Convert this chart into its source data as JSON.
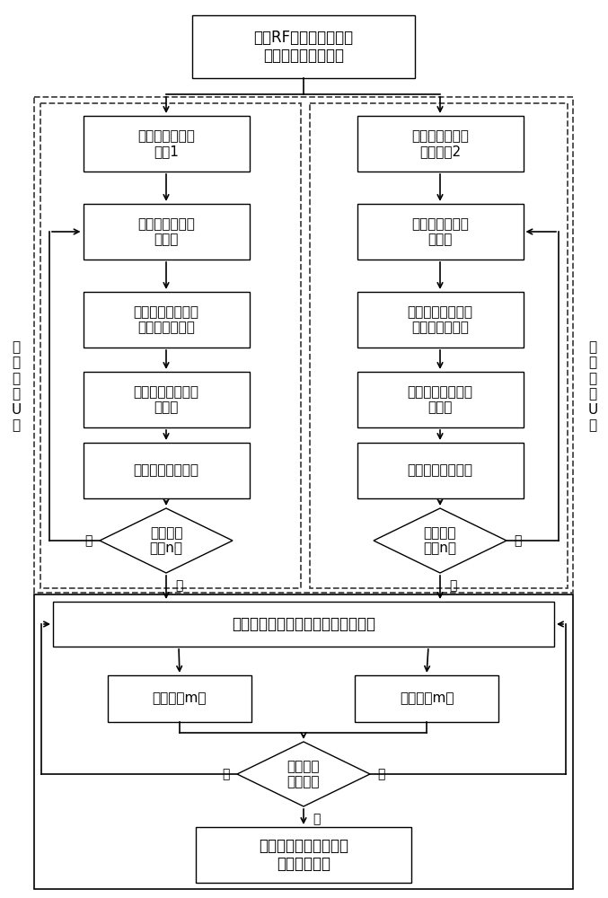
{
  "bg_color": "#ffffff",
  "font_size": 11,
  "nodes": {
    "top": {
      "text": "输入RF变量选择后的样\n本并进行数据预处理"
    },
    "init1": {
      "text": "随机方式初始化\n种群1"
    },
    "init2": {
      "text": "混沌序列方式初\n始化种群2"
    },
    "calc1": {
      "text": "计算出输出层权\n值矩阵"
    },
    "calc2": {
      "text": "计算出输出层权\n值矩阵"
    },
    "fit1": {
      "text": "计算个体适应度值\n（测试集误差）"
    },
    "fit2": {
      "text": "计算个体适应度值\n（测试集误差）"
    },
    "rec1": {
      "text": "记录当前最优个体\n及位置"
    },
    "rec2": {
      "text": "记录当前最优个体\n及位置"
    },
    "upd1": {
      "text": "更新鲸鱼个体位置"
    },
    "upd2": {
      "text": "更新鲸鱼个体位置"
    },
    "dec1": {
      "text": "是否独立\n运行n代"
    },
    "dec2": {
      "text": "是否独立\n运行n代"
    },
    "migrate": {
      "text": "采用移民算子进行两种群间个体交换"
    },
    "run1": {
      "text": "独立运行m代"
    },
    "run2": {
      "text": "独立运行m代"
    },
    "dec3": {
      "text": "是否满足\n终止条件"
    },
    "end": {
      "text": "计算输出层权值矩阵、\n完成模型建立"
    },
    "label_left": {
      "text": "独\n立\n运\n行\nU\n代"
    },
    "label_right": {
      "text": "独\n立\n运\n行\nU\n代"
    }
  },
  "labels": {
    "yes1": "是",
    "yes2": "是",
    "no1": "否",
    "no2": "否",
    "yes3": "是",
    "no3": "否",
    "no4": "否"
  }
}
